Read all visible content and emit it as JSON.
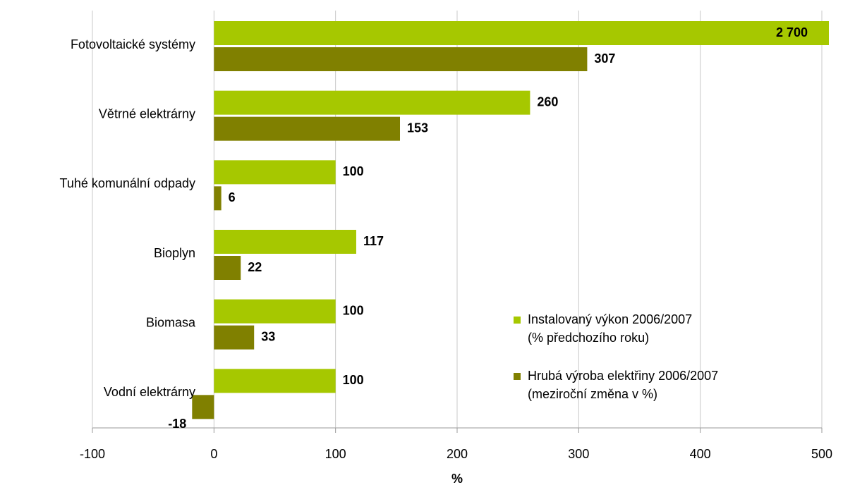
{
  "chart_data": {
    "type": "hbar",
    "categories": [
      "Fotovoltaické systémy",
      "Větrné elektrárny",
      "Tuhé komunální odpady",
      "Bioplyn",
      "Biomasa",
      "Vodní elektrárny"
    ],
    "series": [
      {
        "name": "Instalovaný výkon 2006/2007\n(% předchozího roku)",
        "color": "#a6c800",
        "values": [
          2700,
          260,
          100,
          117,
          100,
          100
        ],
        "value_labels": [
          "2 700",
          "260",
          "100",
          "117",
          "100",
          "100"
        ]
      },
      {
        "name": "Hrubá výroba elektřiny 2006/2007\n(meziroční změna v %)",
        "color": "#808000",
        "values": [
          307,
          153,
          6,
          22,
          33,
          -18
        ]
      }
    ],
    "xlabel": "%",
    "xlim": [
      -100,
      500
    ],
    "xticks": [
      -100,
      0,
      100,
      200,
      300,
      400,
      500
    ],
    "grid": true
  }
}
